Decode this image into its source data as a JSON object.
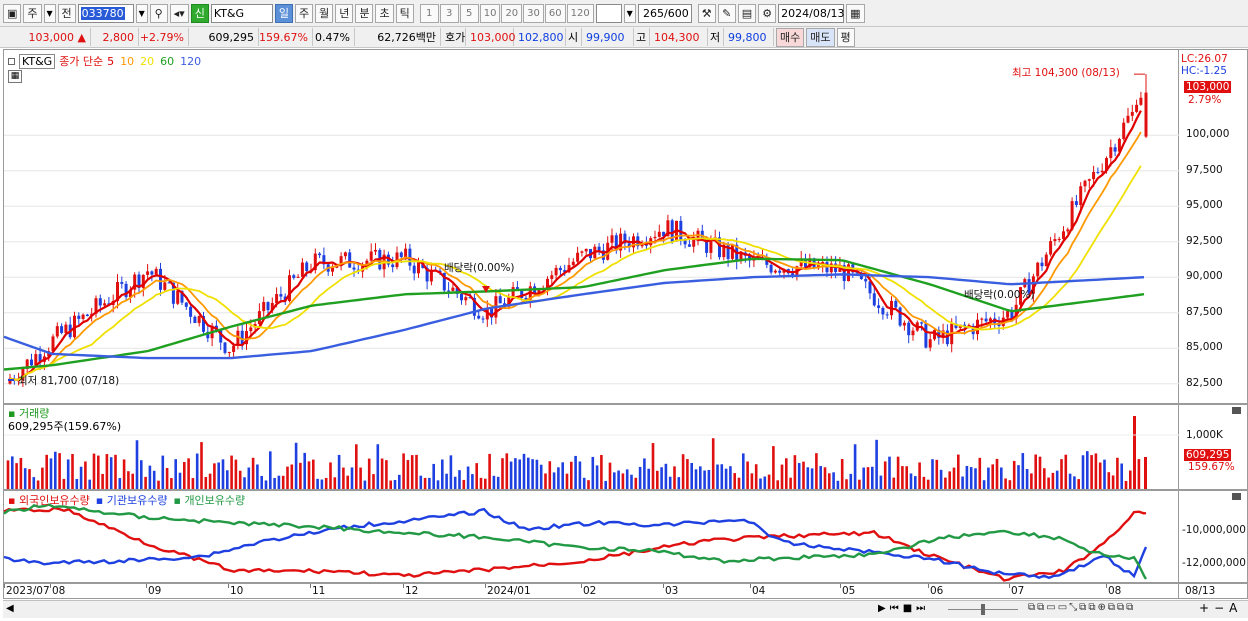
{
  "toolbar": {
    "period_main": "주",
    "prev_label": "전",
    "stock_code": "033780",
    "market_badge": "신",
    "stock_name": "KT&G",
    "period_day": "일",
    "period_week": "주",
    "period_month": "월",
    "period_year": "년",
    "period_minute": "분",
    "period_second": "초",
    "period_tick": "틱",
    "intervals": [
      "1",
      "3",
      "5",
      "10",
      "20",
      "30",
      "60",
      "120"
    ],
    "count_display": "265/600",
    "date": "2024/08/13"
  },
  "quote": {
    "price": "103,000",
    "up_arrow": "▲",
    "change": "2,800",
    "change_pct": "+2.79%",
    "volume": "609,295",
    "volume_ratio": "159.67%",
    "turnover": "0.47%",
    "amount": "62,726백만",
    "bid_label": "호가",
    "ask_price": "103,000",
    "bid_price": "102,800",
    "open_label": "시",
    "open": "99,900",
    "high_label": "고",
    "high": "104,300",
    "low_label": "저",
    "low": "99,800",
    "buy_button": "매수",
    "sell_button": "매도",
    "eval_button": "평"
  },
  "price_panel": {
    "stock_tag": "KT&G",
    "legend_prefix": "종가 단순",
    "ma_periods": [
      "5",
      "10",
      "20",
      "60",
      "120"
    ],
    "ma_colors": [
      "#e00000",
      "#ff9900",
      "#f0e000",
      "#20a020",
      "#3a5ee0"
    ],
    "lc_label": "LC:26.07",
    "hc_label": "HC:-1.25",
    "last_price_tag": "103,000",
    "last_pct_tag": "2.79%",
    "max_note": "최고 104,300 (08/13)",
    "min_note": "최저 81,700 (07/18)",
    "dividend_1": "배당락(0.00%)",
    "dividend_2": "배당락(0.00%)",
    "y_ticks": [
      "100,000",
      "97,500",
      "95,000",
      "92,500",
      "90,000",
      "87,500",
      "85,000",
      "82,500"
    ]
  },
  "volume_panel": {
    "title": "거래량",
    "value_text": "609,295주(159.67%)",
    "y_tick": "1,000K",
    "value_tag": "609,295",
    "pct_tag": "159.67%"
  },
  "holder_panel": {
    "series": [
      {
        "name": "외국인보유수량",
        "color": "#e01010"
      },
      {
        "name": "기관보유수량",
        "color": "#1e40e0"
      },
      {
        "name": "개인보유수량",
        "color": "#229944"
      }
    ],
    "y_ticks": [
      "-10,000,000",
      "-12,000,000"
    ]
  },
  "x_axis": {
    "labels": [
      "2023/07",
      "08",
      "09",
      "10",
      "11",
      "12",
      "2024/01",
      "02",
      "03",
      "04",
      "05",
      "06",
      "07",
      "08"
    ],
    "current_label": "08/13"
  },
  "chart_data": [
    {
      "type": "line",
      "title": "KT&G",
      "x": [
        "2023/07/18",
        "2023/08",
        "2023/09",
        "2023/10",
        "2023/11",
        "2023/12",
        "2024/01",
        "2024/02",
        "2024/03",
        "2024/04",
        "2024/05",
        "2024/06",
        "2024/07",
        "2024/08/13"
      ],
      "series": [
        {
          "name": "종가 단순 5",
          "values": [
            82500,
            85500,
            90500,
            85000,
            91000,
            91300,
            87500,
            91500,
            93500,
            91000,
            90500,
            85500,
            87500,
            103000
          ]
        },
        {
          "name": "종가 단순 60",
          "values": [
            83500,
            83800,
            84800,
            86500,
            88000,
            88800,
            89000,
            89300,
            90500,
            91300,
            91200,
            89500,
            87600,
            88800
          ]
        },
        {
          "name": "종가 단순 120",
          "values": [
            85800,
            84600,
            84300,
            84300,
            84800,
            86300,
            87800,
            88800,
            89600,
            90000,
            90200,
            90000,
            89500,
            90000
          ]
        }
      ],
      "ylim": [
        81000,
        106000
      ]
    },
    {
      "type": "bar",
      "title": "거래량",
      "categories": [
        "2024/08/13"
      ],
      "values": [
        609295
      ]
    }
  ]
}
